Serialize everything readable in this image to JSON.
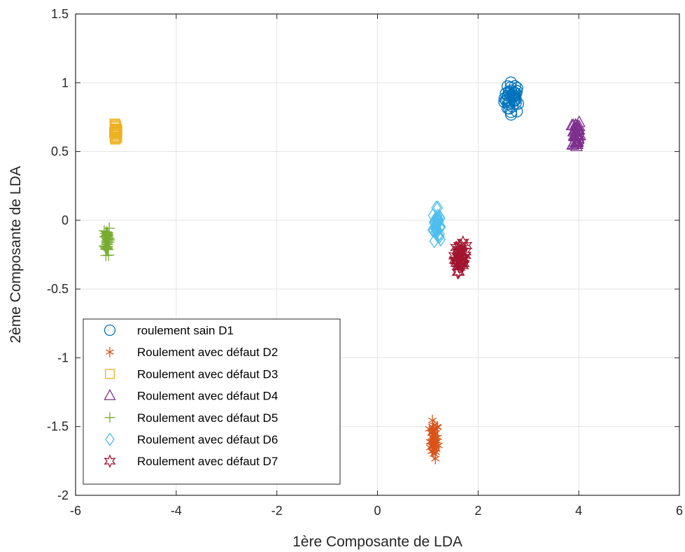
{
  "chart_data": {
    "type": "scatter",
    "xlabel": "1ère  Composante de LDA",
    "ylabel": "2ème Composante de LDA",
    "xlim": [
      -6,
      6
    ],
    "ylim": [
      -2,
      1.5
    ],
    "x_ticks": [
      -6,
      -4,
      -2,
      0,
      2,
      4,
      6
    ],
    "y_ticks": [
      -2,
      -1.5,
      -1,
      -0.5,
      0,
      0.5,
      1,
      1.5
    ],
    "grid": true,
    "legend_position": "bottom-left",
    "series": [
      {
        "name": "roulement sain D1",
        "marker": "circle",
        "color": "#0072BD",
        "center": [
          2.68,
          0.89
        ],
        "spread": [
          0.14,
          0.1
        ],
        "count": 40
      },
      {
        "name": "Roulement avec défaut D2",
        "marker": "asterisk",
        "color": "#D95319",
        "center": [
          1.12,
          -1.6
        ],
        "spread": [
          0.08,
          0.12
        ],
        "count": 40
      },
      {
        "name": "Roulement avec défaut D3",
        "marker": "square",
        "color": "#EDB120",
        "center": [
          -5.2,
          0.63
        ],
        "spread": [
          0.03,
          0.06
        ],
        "count": 25
      },
      {
        "name": "Roulement avec défaut D4",
        "marker": "triangle",
        "color": "#7E2F8E",
        "center": [
          3.95,
          0.63
        ],
        "spread": [
          0.07,
          0.1
        ],
        "count": 40
      },
      {
        "name": "Roulement avec défaut D5",
        "marker": "plus",
        "color": "#77AC30",
        "center": [
          -5.37,
          -0.14
        ],
        "spread": [
          0.05,
          0.1
        ],
        "count": 40
      },
      {
        "name": "Roulement avec défaut D6",
        "marker": "diamond",
        "color": "#4DBEEE",
        "center": [
          1.17,
          -0.03
        ],
        "spread": [
          0.07,
          0.1
        ],
        "count": 40
      },
      {
        "name": "Roulement avec défaut D7",
        "marker": "hexagram",
        "color": "#A2142F",
        "center": [
          1.65,
          -0.27
        ],
        "spread": [
          0.1,
          0.09
        ],
        "count": 40
      }
    ]
  }
}
